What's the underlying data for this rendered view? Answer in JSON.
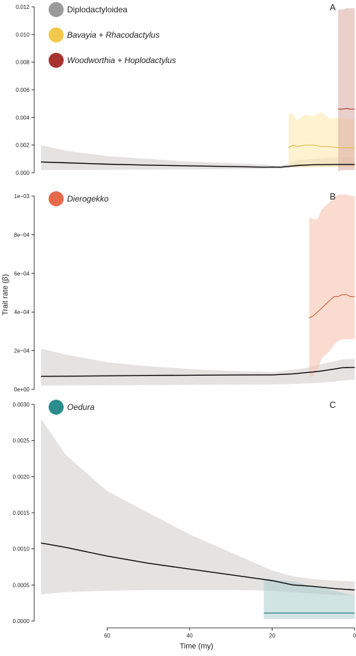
{
  "chart_data": {
    "type": "line",
    "x_label": "Time (my)",
    "y_label": "Trait rate (β)",
    "x_range": [
      76,
      0
    ],
    "x_ticks": [
      60,
      40,
      20,
      0
    ],
    "x_tick_labels": [
      "60",
      "40",
      "20",
      "0"
    ],
    "grid": false,
    "panels": [
      {
        "id": "A",
        "letter": "A",
        "ylim": [
          0,
          0.012
        ],
        "y_ticks": [
          0,
          0.002,
          0.004,
          0.006,
          0.008,
          0.01,
          0.012
        ],
        "y_tick_labels": [
          "0.000",
          "0.002",
          "0.004",
          "0.006",
          "0.008",
          "0.010",
          "0.012"
        ],
        "legend": [
          {
            "label": "Diplodactyloidea",
            "color": "#9a9a9a",
            "italic": false
          },
          {
            "label": "Bavayia + Rhacodactylus",
            "color": "#f2c94c",
            "italic": true
          },
          {
            "label": "Woodworthia + Hoplodactylus",
            "color": "#a8322d",
            "italic": true
          }
        ],
        "series": [
          {
            "color": "#000000",
            "band_color": "#cfcbcb",
            "band_opacity": 0.55,
            "x": [
              76,
              70,
              60,
              50,
              40,
              30,
              22,
              20,
              18,
              16,
              14,
              10,
              5,
              0
            ],
            "y": [
              0.00078,
              0.00072,
              0.00062,
              0.00055,
              0.0005,
              0.00045,
              0.0004,
              0.00041,
              0.0004,
              0.00046,
              0.00052,
              0.00058,
              0.0006,
              0.0006
            ],
            "lower": [
              0.0002,
              0.00021,
              0.00022,
              0.00023,
              0.00024,
              0.00026,
              0.00028,
              0.0003,
              0.00031,
              0.00034,
              0.00037,
              0.0004,
              0.00042,
              0.00042
            ],
            "upper": [
              0.002,
              0.0016,
              0.0012,
              0.001,
              0.0008,
              0.0007,
              0.0006,
              0.00055,
              0.0005,
              0.00065,
              0.0009,
              0.001,
              0.0011,
              0.0011
            ]
          },
          {
            "color": "#e0c04a",
            "band_color": "#fde9b3",
            "band_opacity": 0.6,
            "x": [
              16,
              15,
              14,
              12,
              10,
              8,
              6,
              4,
              2,
              0
            ],
            "y": [
              0.0018,
              0.002,
              0.0019,
              0.002,
              0.002,
              0.0019,
              0.0019,
              0.0018,
              0.0018,
              0.0018
            ],
            "lower": [
              0.0004,
              0.0004,
              0.0004,
              0.0004,
              0.0004,
              0.0004,
              0.0004,
              0.0004,
              0.0004,
              0.0004
            ],
            "upper": [
              0.0043,
              0.0043,
              0.0038,
              0.0042,
              0.0041,
              0.0044,
              0.0039,
              0.004,
              0.0039,
              0.0039
            ]
          },
          {
            "color": "#a8322d",
            "band_color": "#d8a9a0",
            "band_opacity": 0.55,
            "x": [
              4,
              3,
              2,
              1,
              0
            ],
            "y": [
              0.0046,
              0.0046,
              0.00465,
              0.0046,
              0.0046
            ],
            "lower": [
              0.0001,
              0.0002,
              0.0002,
              0.0002,
              0.0002
            ],
            "upper": [
              0.0118,
              0.0118,
              0.0119,
              0.0119,
              0.0119
            ]
          }
        ]
      },
      {
        "id": "B",
        "letter": "B",
        "ylim": [
          0,
          0.001
        ],
        "y_ticks": [
          0,
          0.0002,
          0.0004,
          0.0006,
          0.0008,
          0.001
        ],
        "y_tick_labels": [
          "0e+00",
          "2e−04",
          "4e−04",
          "6e−04",
          "8e−04",
          "1e−03"
        ],
        "legend": [
          {
            "label": "Dierogekko",
            "color": "#e8684a",
            "italic": true
          }
        ],
        "series": [
          {
            "color": "#000000",
            "band_color": "#cfcbcb",
            "band_opacity": 0.55,
            "x": [
              76,
              70,
              60,
              50,
              40,
              30,
              20,
              15,
              12,
              10,
              8,
              5,
              3,
              0
            ],
            "y": [
              6.7e-05,
              6.8e-05,
              7e-05,
              7.2e-05,
              7.3e-05,
              7.4e-05,
              7.5e-05,
              8e-05,
              8.6e-05,
              9e-05,
              9.5e-05,
              0.000105,
              0.000112,
              0.000113
            ],
            "lower": [
              2e-05,
              2e-05,
              2.1e-05,
              2.2e-05,
              2.3e-05,
              2.4e-05,
              2.5e-05,
              2.8e-05,
              3e-05,
              3.2e-05,
              3.5e-05,
              4e-05,
              4.5e-05,
              5e-05
            ],
            "upper": [
              0.00021,
              0.00018,
              0.00014,
              0.00012,
              0.000105,
              9.5e-05,
              9e-05,
              0.0001,
              0.00011,
              0.00012,
              0.00013,
              0.000145,
              0.000155,
              0.000158
            ]
          },
          {
            "color": "#c8694a",
            "band_color": "#f7c8b6",
            "band_opacity": 0.65,
            "x": [
              11,
              10,
              9,
              8,
              6,
              5,
              4,
              3,
              2,
              1,
              0
            ],
            "y": [
              0.00037,
              0.00038,
              0.0004,
              0.00042,
              0.00046,
              0.00048,
              0.00048,
              0.00049,
              0.00049,
              0.00048,
              0.00048
            ],
            "lower": [
              6e-05,
              7e-05,
              0.0001,
              0.00016,
              0.0002,
              0.00023,
              0.00025,
              0.00026,
              0.00026,
              0.00026,
              0.00026
            ],
            "upper": [
              0.00089,
              0.00088,
              0.00088,
              0.00093,
              0.00097,
              0.00099,
              0.00101,
              0.00101,
              0.00101,
              0.001,
              0.001
            ]
          }
        ]
      },
      {
        "id": "C",
        "letter": "C",
        "ylim": [
          0,
          0.003
        ],
        "y_ticks": [
          0,
          0.0005,
          0.001,
          0.0015,
          0.002,
          0.0025,
          0.003
        ],
        "y_tick_labels": [
          "0.0000",
          "0.0005",
          "0.0010",
          "0.0015",
          "0.0020",
          "0.0025",
          "0.0030"
        ],
        "legend": [
          {
            "label": "Oedura",
            "color": "#2c8c8c",
            "italic": true
          }
        ],
        "series": [
          {
            "color": "#000000",
            "band_color": "#cfcbcb",
            "band_opacity": 0.55,
            "x": [
              76,
              70,
              60,
              50,
              40,
              30,
              20,
              15,
              10,
              5,
              0
            ],
            "y": [
              0.00108,
              0.00102,
              0.0009,
              0.0008,
              0.00072,
              0.00064,
              0.00056,
              0.0005,
              0.00048,
              0.00045,
              0.00043
            ],
            "lower": [
              0.00037,
              0.0004,
              0.00042,
              0.00043,
              0.00043,
              0.00043,
              0.00042,
              0.0004,
              0.00038,
              0.00036,
              0.00035
            ],
            "upper": [
              0.0028,
              0.0023,
              0.0018,
              0.0015,
              0.0012,
              0.00095,
              0.0007,
              0.00062,
              0.00058,
              0.00056,
              0.00055
            ]
          },
          {
            "color": "#2c7f80",
            "band_color": "#a9cdcc",
            "band_opacity": 0.55,
            "x": [
              22,
              15,
              10,
              5,
              0
            ],
            "y": [
              0.00011,
              0.00011,
              0.00011,
              0.00011,
              0.00011
            ],
            "lower": [
              3e-05,
              3e-05,
              3e-05,
              3e-05,
              3e-05
            ],
            "upper": [
              0.00058,
              0.00055,
              0.00048,
              0.00042,
              0.00035
            ]
          }
        ]
      }
    ]
  }
}
